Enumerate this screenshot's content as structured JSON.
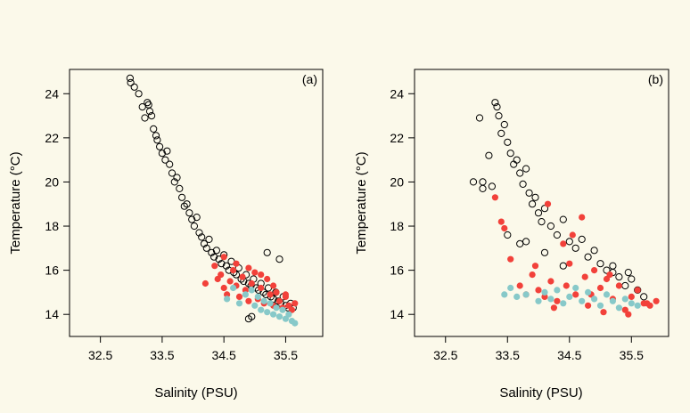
{
  "colors": {
    "background": "#fbf9ea",
    "group_open": "#000000",
    "group_red": "#f2413a",
    "group_cyan": "#87c9c9"
  },
  "chart_data": [
    {
      "type": "scatter",
      "panel_label": "(a)",
      "xlabel": "Salinity (PSU)",
      "ylabel": "Temperature (°C)",
      "xlim": [
        32.0,
        36.1
      ],
      "ylim": [
        13.0,
        25.1
      ],
      "x_ticks": [
        32.5,
        33.5,
        34.5,
        35.5
      ],
      "x_tick_labels": [
        "32.5",
        "33.5",
        "34.5",
        "35.5"
      ],
      "y_ticks": [
        14,
        16,
        18,
        20,
        22,
        24
      ],
      "y_tick_labels": [
        "14",
        "16",
        "18",
        "20",
        "22",
        "24"
      ],
      "grid": false,
      "series": [
        {
          "marker": "open-circle",
          "color": "#000000",
          "x": [
            32.98,
            32.99,
            33.05,
            33.12,
            33.18,
            33.22,
            33.26,
            33.28,
            33.3,
            33.33,
            33.36,
            33.4,
            33.42,
            33.46,
            33.5,
            33.55,
            33.58,
            33.62,
            33.66,
            33.7,
            33.74,
            33.78,
            33.82,
            33.86,
            33.9,
            33.94,
            33.98,
            34.02,
            34.06,
            34.1,
            34.14,
            34.18,
            34.22,
            34.26,
            34.3,
            34.34,
            34.38,
            34.42,
            34.46,
            34.5,
            34.54,
            34.58,
            34.62,
            34.66,
            34.7,
            34.74,
            34.78,
            34.82,
            34.86,
            34.9,
            34.94,
            34.98,
            35.02,
            35.06,
            35.1,
            35.14,
            35.18,
            35.22,
            35.26,
            35.3,
            35.34,
            35.38,
            35.42,
            35.46,
            35.5,
            35.54,
            35.58,
            35.62,
            35.4,
            35.2,
            34.95,
            34.9
          ],
          "y": [
            24.7,
            24.5,
            24.3,
            24.0,
            23.4,
            22.9,
            23.6,
            23.5,
            23.2,
            23.0,
            22.4,
            22.1,
            21.9,
            21.6,
            21.3,
            21.0,
            21.4,
            20.8,
            20.4,
            20.0,
            20.2,
            19.7,
            19.3,
            18.9,
            19.0,
            18.6,
            18.3,
            18.0,
            18.4,
            17.7,
            17.5,
            17.2,
            17.0,
            17.4,
            16.8,
            16.6,
            16.9,
            16.5,
            16.3,
            16.7,
            16.2,
            16.0,
            16.4,
            15.9,
            15.8,
            16.1,
            15.6,
            15.5,
            15.8,
            15.4,
            15.3,
            15.6,
            15.2,
            15.1,
            15.4,
            15.0,
            14.9,
            15.2,
            14.8,
            14.7,
            15.0,
            14.6,
            14.5,
            14.8,
            14.4,
            14.3,
            14.5,
            14.3,
            16.5,
            16.8,
            13.9,
            13.8
          ]
        },
        {
          "marker": "filled-circle",
          "color": "#f2413a",
          "x": [
            34.2,
            34.35,
            34.4,
            34.45,
            34.5,
            34.55,
            34.6,
            34.65,
            34.7,
            34.75,
            34.8,
            34.85,
            34.9,
            34.95,
            35.0,
            35.05,
            35.1,
            35.15,
            35.2,
            35.25,
            35.3,
            35.35,
            35.4,
            35.45,
            35.5,
            35.55,
            35.6,
            35.65,
            34.5,
            34.7,
            34.9,
            35.1,
            35.3,
            35.5
          ],
          "y": [
            15.4,
            16.2,
            15.6,
            15.8,
            15.2,
            14.9,
            15.5,
            16.0,
            15.3,
            14.8,
            15.7,
            15.1,
            14.6,
            15.4,
            15.9,
            14.7,
            15.2,
            14.5,
            15.6,
            14.9,
            14.4,
            15.0,
            14.6,
            14.3,
            14.8,
            14.4,
            14.2,
            14.5,
            16.6,
            16.3,
            16.1,
            15.8,
            15.3,
            14.9
          ]
        },
        {
          "marker": "filled-circle",
          "color": "#87c9c9",
          "x": [
            34.55,
            34.65,
            34.75,
            34.85,
            34.95,
            35.0,
            35.05,
            35.1,
            35.15,
            35.2,
            35.25,
            35.3,
            35.35,
            35.4,
            35.45,
            35.5,
            35.55,
            35.6,
            35.65
          ],
          "y": [
            14.7,
            15.2,
            14.5,
            14.9,
            15.1,
            14.4,
            14.8,
            14.2,
            14.6,
            14.1,
            14.5,
            14.0,
            14.3,
            13.9,
            14.2,
            13.8,
            14.0,
            13.7,
            13.6
          ]
        }
      ]
    },
    {
      "type": "scatter",
      "panel_label": "(b)",
      "xlabel": "Salinity (PSU)",
      "ylabel": "Temperature (°C)",
      "xlim": [
        32.0,
        36.1
      ],
      "ylim": [
        13.0,
        25.1
      ],
      "x_ticks": [
        32.5,
        33.5,
        34.5,
        35.5
      ],
      "x_tick_labels": [
        "32.5",
        "33.5",
        "34.5",
        "35.5"
      ],
      "y_ticks": [
        14,
        16,
        18,
        20,
        22,
        24
      ],
      "y_tick_labels": [
        "14",
        "16",
        "18",
        "20",
        "22",
        "24"
      ],
      "grid": false,
      "series": [
        {
          "marker": "open-circle",
          "color": "#000000",
          "x": [
            32.95,
            33.05,
            33.1,
            33.2,
            33.3,
            33.33,
            33.36,
            33.4,
            33.45,
            33.5,
            33.55,
            33.6,
            33.65,
            33.7,
            33.75,
            33.8,
            33.85,
            33.9,
            33.95,
            34.0,
            34.05,
            34.1,
            34.2,
            34.3,
            34.4,
            34.5,
            34.6,
            34.7,
            34.8,
            34.9,
            35.0,
            35.1,
            35.2,
            35.3,
            35.4,
            35.5,
            35.6,
            35.7,
            33.1,
            33.5,
            33.7,
            34.1,
            34.4,
            33.25,
            33.8,
            35.2,
            35.45
          ],
          "y": [
            20.0,
            22.9,
            20.0,
            21.2,
            23.6,
            23.4,
            23.0,
            22.2,
            22.6,
            21.8,
            21.3,
            20.8,
            21.0,
            20.4,
            19.9,
            20.6,
            19.5,
            19.0,
            19.3,
            18.6,
            18.2,
            18.8,
            18.0,
            17.6,
            18.3,
            17.3,
            17.0,
            17.4,
            16.6,
            16.9,
            16.3,
            16.0,
            15.9,
            15.7,
            15.3,
            15.6,
            15.1,
            14.8,
            19.7,
            17.6,
            17.2,
            16.8,
            16.2,
            19.8,
            17.3,
            16.2,
            15.9
          ]
        },
        {
          "marker": "filled-circle",
          "color": "#f2413a",
          "x": [
            33.3,
            33.4,
            33.55,
            33.7,
            33.8,
            33.9,
            34.0,
            34.1,
            34.15,
            34.2,
            34.3,
            34.4,
            34.45,
            34.5,
            34.6,
            34.7,
            34.75,
            34.8,
            34.9,
            35.0,
            35.05,
            35.1,
            35.2,
            35.3,
            35.4,
            35.5,
            35.6,
            35.7,
            35.8,
            35.9,
            33.45,
            33.95,
            34.25,
            34.55,
            34.85,
            35.15,
            35.45,
            35.75
          ],
          "y": [
            19.3,
            18.2,
            16.5,
            15.3,
            14.9,
            15.8,
            15.1,
            14.8,
            19.0,
            15.5,
            14.6,
            17.2,
            15.3,
            16.3,
            14.9,
            18.4,
            15.7,
            14.4,
            16.0,
            15.2,
            14.1,
            15.6,
            14.7,
            15.3,
            14.2,
            14.8,
            15.1,
            14.5,
            14.4,
            14.6,
            17.9,
            16.2,
            14.3,
            17.6,
            14.9,
            15.8,
            14.0,
            14.5
          ]
        },
        {
          "marker": "filled-circle",
          "color": "#87c9c9",
          "x": [
            33.45,
            33.55,
            33.65,
            33.8,
            34.0,
            34.1,
            34.2,
            34.3,
            34.4,
            34.5,
            34.6,
            34.7,
            34.8,
            34.9,
            35.0,
            35.1,
            35.2,
            35.3,
            35.4,
            35.5,
            35.6
          ],
          "y": [
            14.9,
            15.2,
            14.8,
            14.9,
            14.6,
            15.0,
            14.7,
            15.1,
            14.5,
            14.8,
            15.2,
            14.6,
            15.0,
            14.7,
            14.4,
            14.9,
            14.6,
            14.3,
            14.7,
            14.5,
            14.4
          ]
        }
      ]
    }
  ]
}
